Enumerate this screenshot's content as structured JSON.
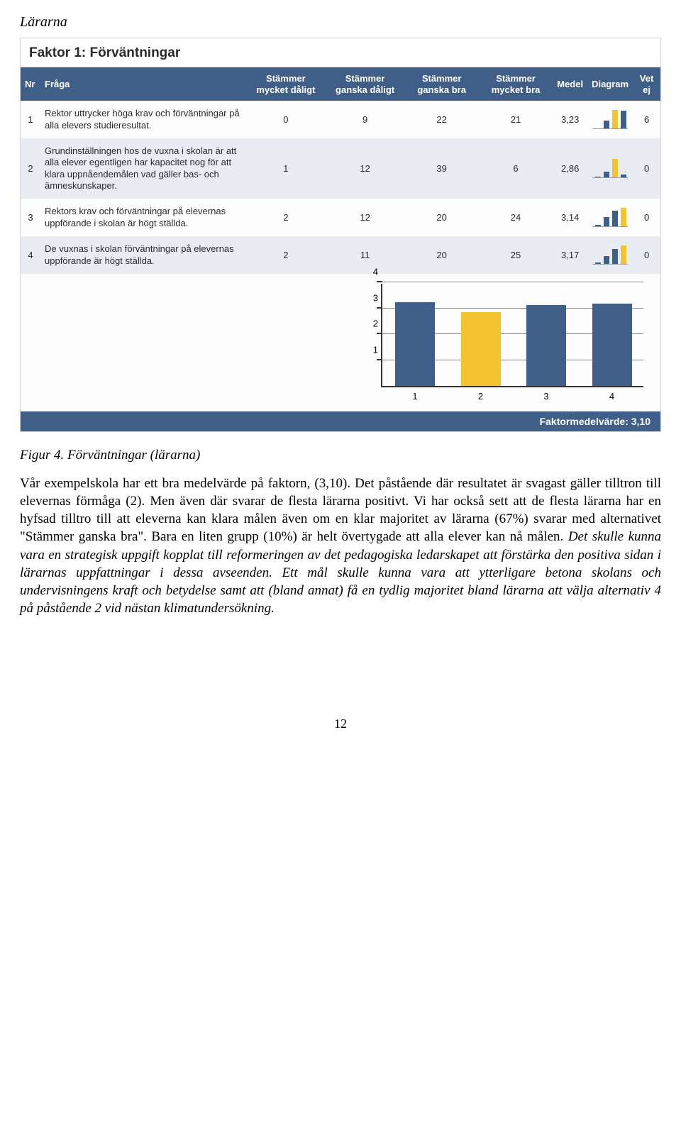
{
  "section_title": "Lärarna",
  "faktor_title": "Faktor 1: Förväntningar",
  "table": {
    "headers": {
      "nr": "Nr",
      "fraga": "Fråga",
      "c1": "Stämmer mycket dåligt",
      "c2": "Stämmer ganska dåligt",
      "c3": "Stämmer ganska bra",
      "c4": "Stämmer mycket bra",
      "medel": "Medel",
      "diagram": "Diagram",
      "vetej": "Vet ej"
    },
    "rows": [
      {
        "nr": "1",
        "q": "Rektor uttrycker höga krav och förväntningar på alla elevers studieresultat.",
        "v": [
          "0",
          "9",
          "22",
          "21"
        ],
        "medel": "3,23",
        "vetej": "6",
        "mini": [
          0,
          9,
          22,
          21
        ],
        "hi": 2
      },
      {
        "nr": "2",
        "q": "Grundinställningen hos de vuxna i skolan är att alla elever egentligen har kapacitet nog för att klara uppnåendemålen vad gäller bas- och ämneskunskaper.",
        "v": [
          "1",
          "12",
          "39",
          "6"
        ],
        "medel": "2,86",
        "vetej": "0",
        "mini": [
          1,
          12,
          39,
          6
        ],
        "hi": 2
      },
      {
        "nr": "3",
        "q": "Rektors krav och förväntningar på elevernas uppförande i skolan är högt ställda.",
        "v": [
          "2",
          "12",
          "20",
          "24"
        ],
        "medel": "3,14",
        "vetej": "0",
        "mini": [
          2,
          12,
          20,
          24
        ],
        "hi": 3
      },
      {
        "nr": "4",
        "q": "De vuxnas i skolan förväntningar på elevernas uppförande är högt ställda.",
        "v": [
          "2",
          "11",
          "20",
          "25"
        ],
        "medel": "3,17",
        "vetej": "0",
        "mini": [
          2,
          11,
          20,
          25
        ],
        "hi": 3
      }
    ]
  },
  "colors": {
    "bar_main": "#3f5f88",
    "bar_highlight": "#f4c430",
    "header_bg": "#3f5f88",
    "grid": "#888888"
  },
  "big_chart": {
    "y_ticks": [
      1,
      2,
      3,
      4
    ],
    "y_max": 4,
    "x_labels": [
      "1",
      "2",
      "3",
      "4"
    ],
    "values": [
      3.23,
      2.86,
      3.14,
      3.17
    ],
    "highlight_index": 1
  },
  "footer_value": "Faktormedelvärde: 3,10",
  "caption": "Figur 4. Förväntningar (lärarna)",
  "paragraph_plain_1": "Vår exempelskola har ett bra medelvärde på faktorn, (3,10). Det påstående där resultatet är svagast gäller tilltron till elevernas förmåga (2). Men även där svarar de flesta lärarna positivt. Vi har också sett att de flesta lärarna har en hyfsad tilltro till att eleverna kan klara målen även om en klar majoritet av lärarna (67%) svarar med alternativet \"Stämmer ganska bra\". Bara en liten grupp (10%) är helt övertygade att alla elever kan nå målen. ",
  "paragraph_ital_1": "Det skulle kunna vara en strategisk uppgift kopplat till reformeringen av det pedagogiska ledarskapet att förstärka den positiva sidan i lärarnas uppfattningar i dessa avseenden. Ett mål skulle kunna vara att ytterligare betona skolans och undervisningens kraft och betydelse samt att (bland annat) få en tydlig majoritet bland lärarna att välja alternativ 4 på påstående 2 vid nästan klimat­undersökning.",
  "page_number": "12"
}
